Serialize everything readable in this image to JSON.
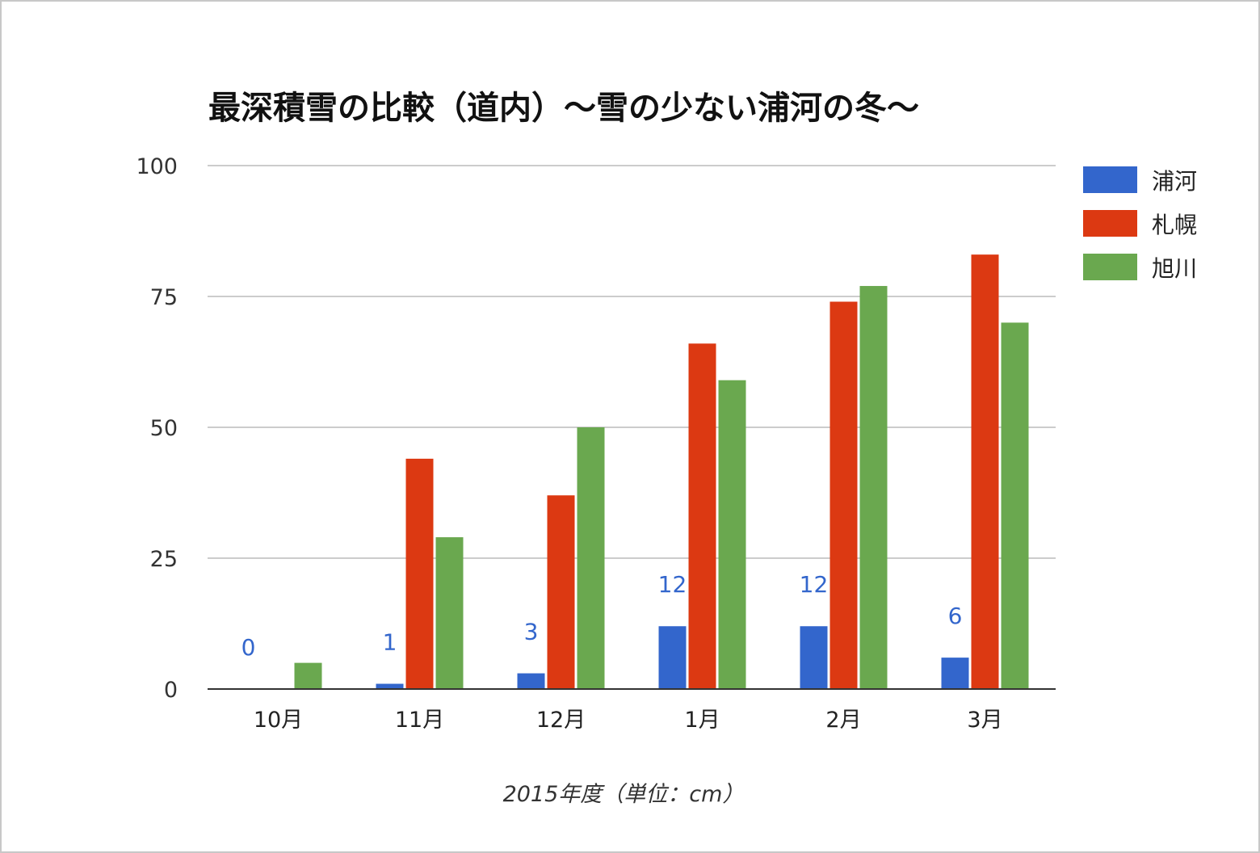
{
  "chart_data": {
    "type": "bar",
    "title": "最深積雪の比較（道内）～雪の少ない浦河の冬～",
    "xlabel": "2015年度（単位：cm）",
    "ylabel": "",
    "ylim": [
      0,
      100
    ],
    "yticks": [
      "0",
      "25",
      "50",
      "75",
      "100"
    ],
    "categories": [
      "10月",
      "11月",
      "12月",
      "1月",
      "2月",
      "3月"
    ],
    "series": [
      {
        "name": "浦河",
        "color": "#3366cc",
        "values": [
          0,
          1,
          3,
          12,
          12,
          6
        ],
        "data_labels": [
          "0",
          "1",
          "3",
          "12",
          "12",
          "6"
        ]
      },
      {
        "name": "札幌",
        "color": "#dc3912",
        "values": [
          0,
          44,
          37,
          66,
          74,
          83
        ]
      },
      {
        "name": "旭川",
        "color": "#6aa84f",
        "values": [
          5,
          29,
          50,
          59,
          77,
          70
        ]
      }
    ],
    "grid": true,
    "legend_position": "right"
  }
}
